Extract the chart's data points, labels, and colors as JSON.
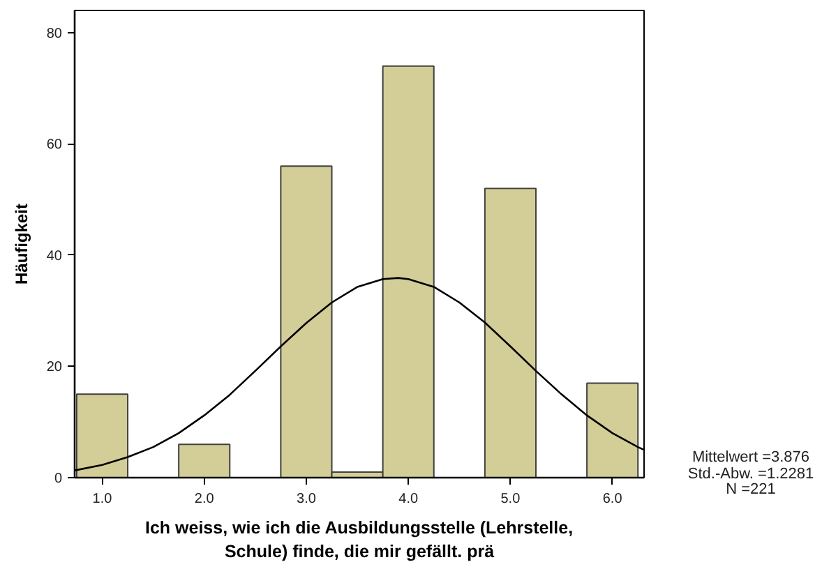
{
  "chart_data": {
    "type": "histogram",
    "xlabel": "Ich weiss, wie ich die Ausbildungsstelle (Lehrstelle, Schule) finde, die mir gefällt. prä",
    "ylabel": "Häufigkeit",
    "bins": [
      0.75,
      1.25,
      1.75,
      2.25,
      2.75,
      3.25,
      3.75,
      4.25,
      4.75,
      5.25,
      5.75,
      6.25
    ],
    "values": [
      15,
      0,
      6,
      0,
      56,
      1,
      74,
      0,
      52,
      0,
      17
    ],
    "color": "#d3ce97",
    "series": [
      {
        "type": "line",
        "color": "#000000",
        "x": [
          0.73,
          1.0,
          1.25,
          1.5,
          1.75,
          2.0,
          2.25,
          2.5,
          2.75,
          3.0,
          3.25,
          3.5,
          3.75,
          3.9,
          4.0,
          4.25,
          4.5,
          4.75,
          5.0,
          5.25,
          5.5,
          5.75,
          6.0,
          6.25,
          6.31
        ],
        "values": [
          1.3,
          2.3,
          3.7,
          5.5,
          8.0,
          11.2,
          14.9,
          19.2,
          23.6,
          27.8,
          31.5,
          34.3,
          35.7,
          35.9,
          35.7,
          34.3,
          31.5,
          27.9,
          23.6,
          19.2,
          15.0,
          11.2,
          8.0,
          5.5,
          5.0
        ]
      }
    ],
    "xlim": [
      0.73,
      6.31
    ],
    "ylim": [
      0,
      84
    ],
    "xticks": [
      {
        "value": 1,
        "label": "1.0"
      },
      {
        "value": 2,
        "label": "2.0"
      },
      {
        "value": 3,
        "label": "3.0"
      },
      {
        "value": 4,
        "label": "4.0"
      },
      {
        "value": 5,
        "label": "5.0"
      },
      {
        "value": 6,
        "label": "6.0"
      }
    ],
    "yticks": [
      0,
      20,
      40,
      60,
      80
    ],
    "annotations": [
      "Mittelwert =3.876",
      "Std.-Abw. =1.2281",
      "N =221"
    ]
  }
}
